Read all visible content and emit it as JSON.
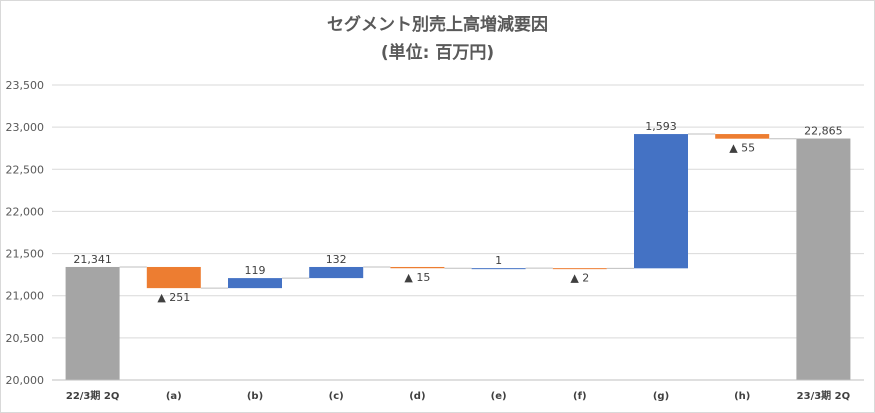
{
  "chart_data": {
    "type": "bar",
    "subtype": "waterfall",
    "title": "セグメント別売上高増減要因",
    "subtitle": "(単位: 百万円)",
    "categories": [
      "22/3期 2Q",
      "(a)",
      "(b)",
      "(c)",
      "(d)",
      "(e)",
      "(f)",
      "(g)",
      "(h)",
      "23/3期 2Q"
    ],
    "values": [
      21341,
      -251,
      119,
      132,
      -15,
      1,
      -2,
      1593,
      -55,
      22865
    ],
    "kinds": [
      "total",
      "delta",
      "delta",
      "delta",
      "delta",
      "delta",
      "delta",
      "delta",
      "delta",
      "total"
    ],
    "data_labels": [
      "21,341",
      "▲ 251",
      "119",
      "132",
      "▲ 15",
      "1",
      "▲ 2",
      "1,593",
      "▲ 55",
      "22,865"
    ],
    "ylim": [
      20000,
      23500
    ],
    "yticks": [
      20000,
      20500,
      21000,
      21500,
      22000,
      22500,
      23000,
      23500
    ],
    "ytick_labels": [
      "20,000",
      "20,500",
      "21,000",
      "21,500",
      "22,000",
      "22,500",
      "23,000",
      "23,500"
    ],
    "grid": true,
    "colors": {
      "total": "#a5a5a5",
      "increase": "#4472c4",
      "decrease": "#ed7d31",
      "grid": "#d9d9d9"
    }
  }
}
